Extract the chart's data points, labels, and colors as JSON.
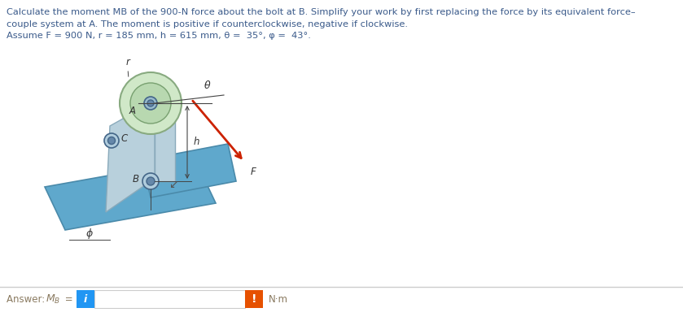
{
  "title_line1": "Calculate the moment MB of the 900-N force about the bolt at B. Simplify your work by first replacing the force by its equivalent force–",
  "title_line2": "couple system at A. The moment is positive if counterclockwise, negative if clockwise.",
  "title_line3": "Assume F = 900 N, r = 185 mm, h = 615 mm, θ =  35°, φ =  43°.",
  "unit_label": "N·m",
  "bg_color": "#ffffff",
  "text_color": "#3a5a8a",
  "answer_text_color": "#8a7a60",
  "blue_btn_color": "#2196F3",
  "orange_btn_color": "#E65100",
  "input_border_color": "#cccccc",
  "plate_color_light": "#a8cfe0",
  "plate_color_dark": "#5fa8cc",
  "bracket_color": "#b8d0dc",
  "bracket_edge": "#8aaabb",
  "circle_outer_color": "#b8d8b0",
  "circle_inner_color": "#d0e8c8",
  "bolt_color": "#6688aa",
  "bolt_edge": "#446688",
  "force_arrow_color": "#cc2200",
  "dim_line_color": "#444444",
  "label_color": "#333333"
}
